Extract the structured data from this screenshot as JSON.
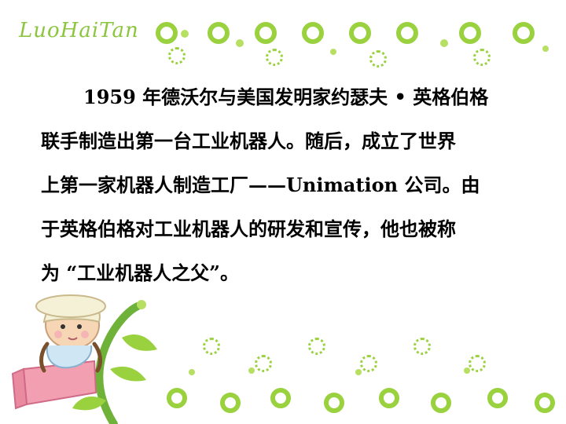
{
  "header": {
    "logo_text": "LuoHaiTan"
  },
  "content": {
    "lines": [
      "1959 年德沃尔与美国发明家约瑟夫 • 英格伯格",
      "联手制造出第一台工业机器人。随后，成立了世界",
      "上第一家机器人制造工厂——Unimation 公司。由",
      "于英格伯格对工业机器人的研发和宣传，他也被称",
      "为 “工业机器人之父”。"
    ]
  },
  "decorations": {
    "accent_green": "#9ad13f",
    "light_green": "#b7e063"
  }
}
